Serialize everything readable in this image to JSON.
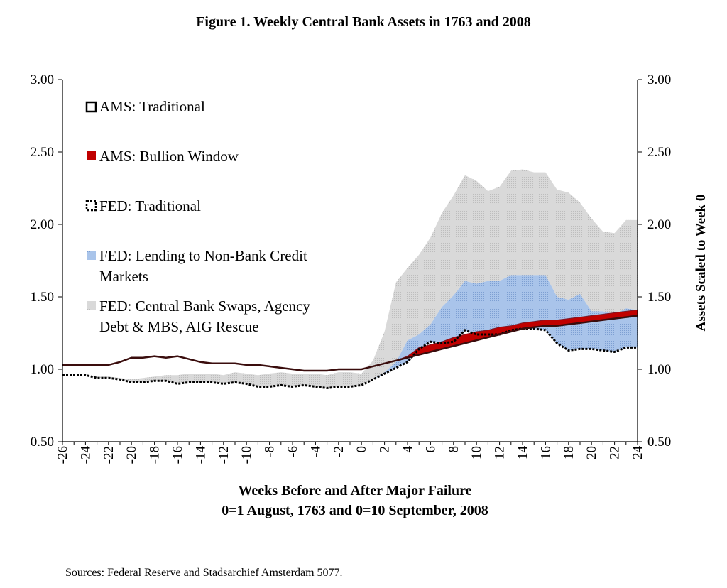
{
  "figure": {
    "title": "Figure 1. Weekly Central Bank Assets in 1763 and 2008",
    "xlabel_line1": "Weeks Before and After Major Failure",
    "xlabel_line2": "0=1 August, 1763 and 0=10 September, 2008",
    "y2label": "Assets Scaled to Week 0",
    "source": "Sources: Federal Reserve and Stadsarchief Amsterdam 5077."
  },
  "colors": {
    "ams_traditional": "#3a0d0d",
    "ams_bullion": "#c00000",
    "fed_traditional": "#000000",
    "fed_lending": "#9db9e3",
    "fed_swaps": "#d4d4d4"
  },
  "chart_data": {
    "type": "area",
    "x": [
      -26,
      -25,
      -24,
      -23,
      -22,
      -21,
      -20,
      -19,
      -18,
      -17,
      -16,
      -15,
      -14,
      -13,
      -12,
      -11,
      -10,
      -9,
      -8,
      -7,
      -6,
      -5,
      -4,
      -3,
      -2,
      -1,
      0,
      1,
      2,
      3,
      4,
      5,
      6,
      7,
      8,
      9,
      10,
      11,
      12,
      13,
      14,
      15,
      16,
      17,
      18,
      19,
      20,
      21,
      22,
      23,
      24
    ],
    "xticks": [
      -26,
      -24,
      -22,
      -20,
      -18,
      -16,
      -14,
      -12,
      -10,
      -8,
      -6,
      -4,
      -2,
      0,
      2,
      4,
      6,
      8,
      10,
      12,
      14,
      16,
      18,
      20,
      22,
      24
    ],
    "ylim": [
      0.5,
      3.0
    ],
    "yticks": [
      "0.50",
      "1.00",
      "1.50",
      "2.00",
      "2.50",
      "3.00"
    ],
    "y2ticks": [
      "0.50",
      "1.00",
      "1.50",
      "2.00",
      "2.50",
      "3.00"
    ],
    "grid": false,
    "legend_position": "left",
    "series": [
      {
        "name": "AMS: Traditional",
        "kind": "line",
        "values": [
          1.03,
          1.03,
          1.03,
          1.03,
          1.03,
          1.05,
          1.08,
          1.08,
          1.09,
          1.08,
          1.09,
          1.07,
          1.05,
          1.04,
          1.04,
          1.04,
          1.03,
          1.03,
          1.02,
          1.01,
          1.0,
          0.99,
          0.99,
          0.99,
          1.0,
          1.0,
          1.0,
          1.02,
          1.04,
          1.06,
          1.08,
          1.1,
          1.12,
          1.14,
          1.16,
          1.18,
          1.2,
          1.22,
          1.24,
          1.26,
          1.28,
          1.29,
          1.3,
          1.3,
          1.31,
          1.32,
          1.33,
          1.34,
          1.35,
          1.36,
          1.37
        ]
      },
      {
        "name": "AMS: Bullion Window",
        "kind": "band",
        "values": [
          0,
          0,
          0,
          0,
          0,
          0,
          0,
          0,
          0,
          0,
          0,
          0,
          0,
          0,
          0,
          0,
          0,
          0,
          0,
          0,
          0,
          0,
          0,
          0,
          0,
          0,
          0,
          0,
          0,
          0,
          0.01,
          0.05,
          0.05,
          0.05,
          0.06,
          0.06,
          0.06,
          0.05,
          0.05,
          0.04,
          0.04,
          0.04,
          0.04,
          0.04,
          0.04,
          0.04,
          0.04,
          0.04,
          0.04,
          0.04,
          0.04
        ]
      },
      {
        "name": "FED: Traditional",
        "kind": "line",
        "values": [
          0.96,
          0.96,
          0.96,
          0.94,
          0.94,
          0.93,
          0.91,
          0.91,
          0.92,
          0.92,
          0.9,
          0.91,
          0.91,
          0.91,
          0.9,
          0.91,
          0.9,
          0.88,
          0.88,
          0.89,
          0.88,
          0.89,
          0.88,
          0.87,
          0.88,
          0.88,
          0.89,
          0.93,
          0.97,
          1.01,
          1.05,
          1.14,
          1.19,
          1.18,
          1.19,
          1.27,
          1.24,
          1.24,
          1.24,
          1.27,
          1.28,
          1.28,
          1.27,
          1.18,
          1.13,
          1.14,
          1.14,
          1.13,
          1.12,
          1.15,
          1.15
        ]
      },
      {
        "name": "FED: Lending to Non-Bank Credit Markets",
        "kind": "band",
        "values": [
          0,
          0,
          0,
          0,
          0,
          0,
          0,
          0,
          0,
          0,
          0,
          0,
          0,
          0,
          0,
          0,
          0,
          0,
          0,
          0,
          0,
          0,
          0,
          0,
          0,
          0,
          0,
          0,
          0.01,
          0.04,
          0.15,
          0.1,
          0.12,
          0.25,
          0.32,
          0.34,
          0.35,
          0.37,
          0.37,
          0.38,
          0.37,
          0.37,
          0.38,
          0.32,
          0.35,
          0.38,
          0.26,
          0.27,
          0.26,
          0.27,
          0.26
        ]
      },
      {
        "name": "FED: Central Bank Swaps, Agency Debt & MBS, AIG Rescue",
        "kind": "band",
        "values": [
          0,
          0,
          0,
          0.01,
          0.01,
          0.01,
          0.02,
          0.03,
          0.03,
          0.04,
          0.06,
          0.06,
          0.06,
          0.06,
          0.06,
          0.07,
          0.07,
          0.08,
          0.09,
          0.09,
          0.09,
          0.08,
          0.09,
          0.09,
          0.1,
          0.1,
          0.08,
          0.13,
          0.28,
          0.55,
          0.5,
          0.55,
          0.6,
          0.65,
          0.69,
          0.73,
          0.71,
          0.62,
          0.65,
          0.72,
          0.73,
          0.71,
          0.71,
          0.74,
          0.74,
          0.63,
          0.64,
          0.55,
          0.56,
          0.61,
          0.62
        ]
      }
    ],
    "legend": [
      "AMS: Traditional",
      "AMS: Bullion Window",
      "FED: Traditional",
      "FED: Lending to Non-Bank Credit",
      "Markets",
      "FED: Central Bank Swaps, Agency",
      "Debt & MBS, AIG Rescue"
    ]
  }
}
